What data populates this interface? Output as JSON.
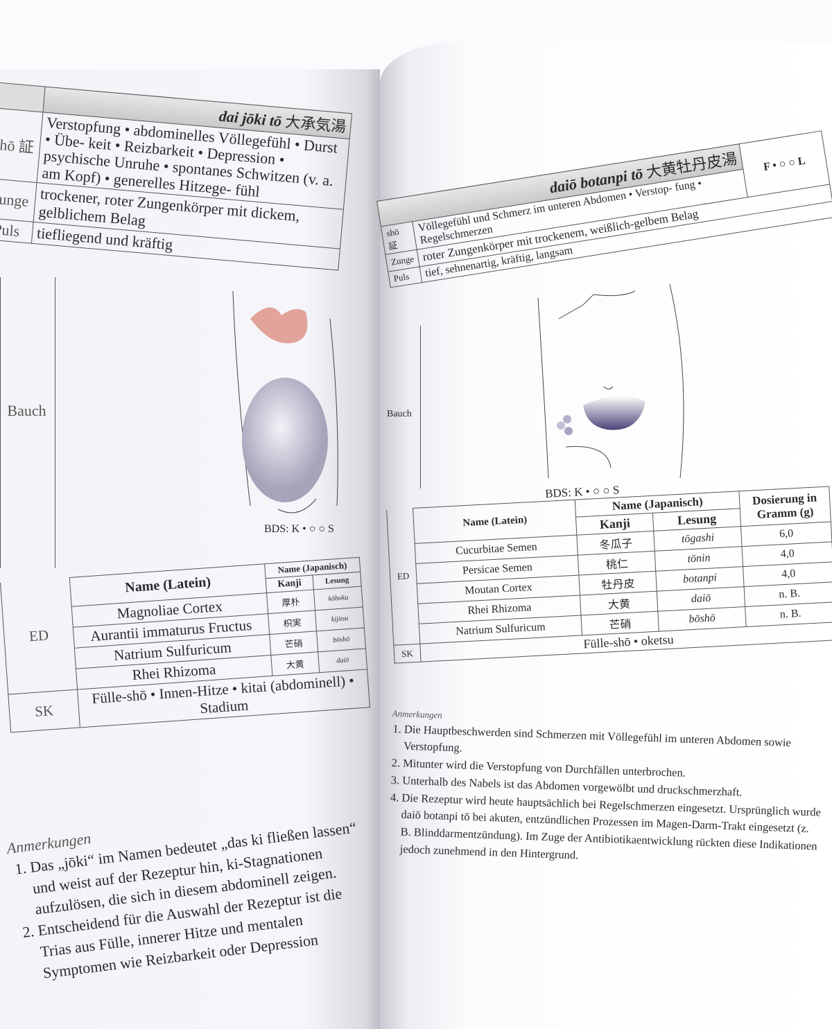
{
  "left": {
    "title": "dai jōki tō",
    "title_kanji": "大承気湯",
    "rows": [
      {
        "label": "shō 証",
        "text": "Verstopfung • abdominelles Völlegefühl • Durst • Übe- keit • Reizbarkeit • Depression • psychische Unruhe • spontanes Schwitzen (v. a. am Kopf) • generelles Hitzege- fühl"
      },
      {
        "label": "Zunge",
        "text": "trockener, roter Zungenkörper mit dickem, gelblichem Belag"
      },
      {
        "label": "Puls",
        "text": "tiefliegend und kräftig"
      },
      {
        "label": "Bauch",
        "text": ""
      }
    ],
    "bds": "BDS: K • ○ ○ S",
    "ed_label": "ED",
    "headers": {
      "latin": "Name (Latein)",
      "japanese": "Name (Japanisch)",
      "kanji": "Kanji",
      "reading": "Lesung"
    },
    "ingredients": [
      {
        "latin": "Magnoliae Cortex",
        "kanji": "厚朴",
        "reading": "kōboku"
      },
      {
        "latin": "Aurantii immaturus Fructus",
        "kanji": "枳実",
        "reading": "kijitsu"
      },
      {
        "latin": "Natrium Sulfuricum",
        "kanji": "芒硝",
        "reading": "bōshō"
      },
      {
        "latin": "Rhei Rhizoma",
        "kanji": "大黄",
        "reading": "daiō"
      }
    ],
    "sk_label": "SK",
    "sk_text": "Fülle-shō • Innen-Hitze • kitai (abdominell) • Stadium",
    "notes_title": "Anmerkungen",
    "notes": [
      "Das „jōki“ im Namen bedeutet „das ki fließen lassen“ und weist auf der Rezeptur hin, ki-Stagnationen aufzulösen, die sich in diesem abdominell zeigen.",
      "Entscheidend für die Auswahl der Rezeptur ist die Trias aus Fülle, innerer Hitze und mentalen Symptomen wie Reizbarkeit oder Depression"
    ]
  },
  "right": {
    "title": "daiō botanpi tō",
    "title_kanji": "大黄牡丹皮湯",
    "constitution": "F • ○ ○ L",
    "rows": [
      {
        "label": "shō 証",
        "text": "Völlegefühl und Schmerz im unteren Abdomen • Verstop- fung • Regelschmerzen"
      },
      {
        "label": "Zunge",
        "text": "roter Zungenkörper mit trockenem, weißlich-gelbem Belag"
      },
      {
        "label": "Puls",
        "text": "tief, sehnenartig, kräftig, langsam"
      },
      {
        "label": "Bauch",
        "text": ""
      }
    ],
    "bds": "BDS: K • ○ ○ S",
    "ed_label": "ED",
    "headers": {
      "latin": "Name (Latein)",
      "japanese": "Name (Japanisch)",
      "kanji": "Kanji",
      "reading": "Lesung",
      "dose": "Dosierung in Gramm (g)"
    },
    "ingredients": [
      {
        "latin": "Cucurbitae Semen",
        "kanji": "冬瓜子",
        "reading": "tōgashi",
        "dose": "6,0"
      },
      {
        "latin": "Persicae Semen",
        "kanji": "桃仁",
        "reading": "tōnin",
        "dose": "4,0"
      },
      {
        "latin": "Moutan Cortex",
        "kanji": "牡丹皮",
        "reading": "botanpi",
        "dose": "4,0"
      },
      {
        "latin": "Rhei Rhizoma",
        "kanji": "大黄",
        "reading": "daiō",
        "dose": "n. B."
      },
      {
        "latin": "Natrium Sulfuricum",
        "kanji": "芒硝",
        "reading": "bōshō",
        "dose": "n. B."
      }
    ],
    "sk_label": "SK",
    "sk_text": "Fülle-shō • oketsu",
    "notes_title": "Anmerkungen",
    "notes": [
      "Die Hauptbeschwerden sind Schmerzen mit Völlegefühl im unteren Abdomen sowie Verstopfung.",
      "Mitunter wird die Verstopfung von Durchfällen unterbrochen.",
      "Unterhalb des Nabels ist das Abdomen vorgewölbt und druckschmerzhaft.",
      "Die Rezeptur wird heute hauptsächlich bei Regelschmerzen eingesetzt. Ursprünglich wurde daiō botanpi tō bei akuten, entzündlichen Prozessen im Magen-Darm-Trakt eingesetzt (z. B. Blinddarmentzündung). Im Zuge der Antibiotikaentwicklung rückten diese Indikationen jedoch zunehmend in den Hintergrund."
    ]
  }
}
